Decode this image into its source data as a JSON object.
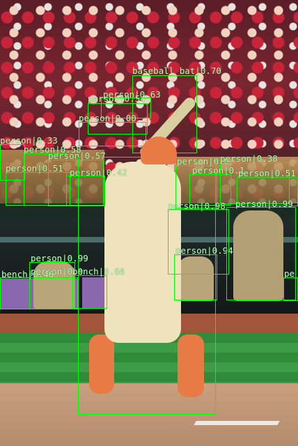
{
  "scene": {
    "description_colors": {
      "crowd_red": "#c7243a",
      "box_color": "#00ff00",
      "grass": "#3d9c45",
      "dirt": "#c8a07f"
    }
  },
  "detections": [
    {
      "id": "baseball-bat",
      "text": "baseball_bat|0.70"
    },
    {
      "id": "person-1",
      "text": "person|0.63"
    },
    {
      "id": "person-2",
      "text": "person|0.54"
    },
    {
      "id": "person-3",
      "text": "person|0.00"
    },
    {
      "id": "person-4",
      "text": "person|0.33"
    },
    {
      "id": "person-5",
      "text": "person|0.58"
    },
    {
      "id": "person-6",
      "text": "person|0.57"
    },
    {
      "id": "person-7",
      "text": "person|0.51"
    },
    {
      "id": "person-8",
      "text": "person|0.42"
    },
    {
      "id": "person-9",
      "text": "person|0.0"
    },
    {
      "id": "person-10",
      "text": "person|0.38"
    },
    {
      "id": "person-11",
      "text": "person|0.1"
    },
    {
      "id": "person-12",
      "text": "person|0.51"
    },
    {
      "id": "person-13",
      "text": "person|0.99"
    },
    {
      "id": "person-14",
      "text": "person|0.98"
    },
    {
      "id": "person-15",
      "text": "person|0.94"
    },
    {
      "id": "person-16",
      "text": "person|0.99"
    },
    {
      "id": "person-17",
      "text": "person|0.9"
    },
    {
      "id": "bench-1",
      "text": "bench|0.46"
    },
    {
      "id": "bench-2",
      "text": "bench|0.66"
    },
    {
      "id": "person-18",
      "text": "pe"
    }
  ]
}
